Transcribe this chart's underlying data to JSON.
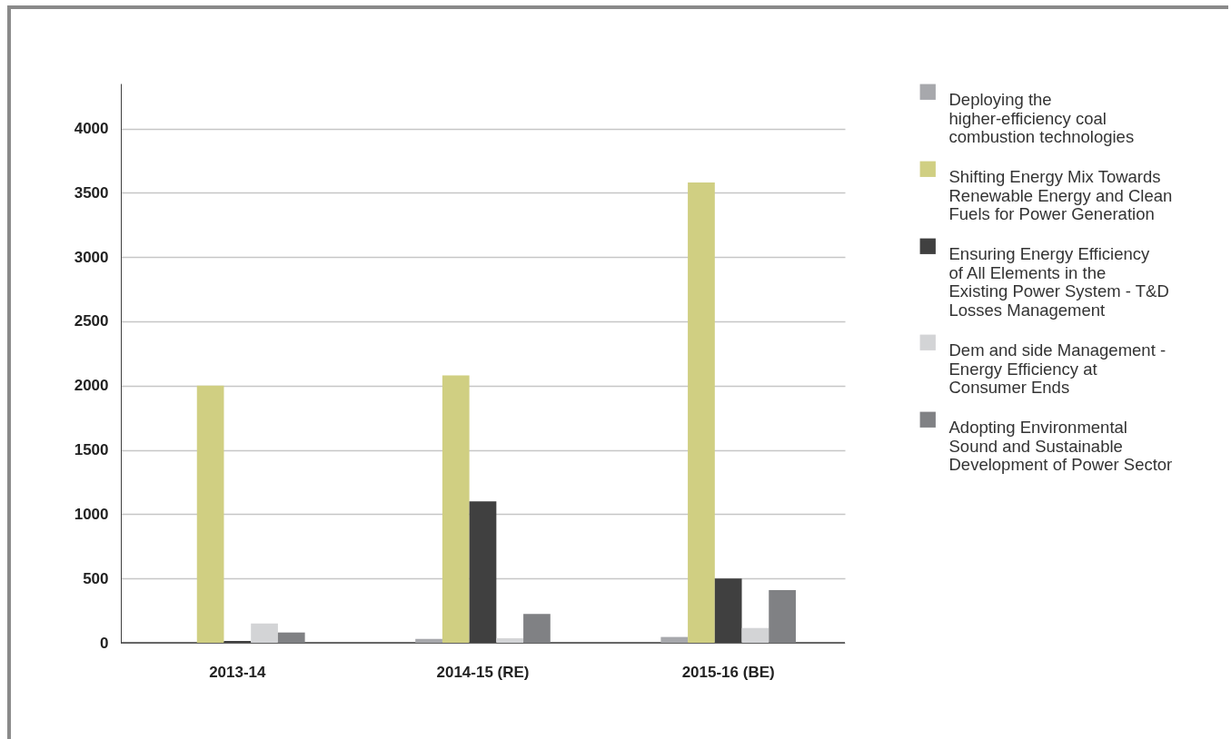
{
  "chart_data": {
    "type": "bar",
    "categories": [
      "2013-14",
      "2014-15 (RE)",
      "2015-16 (BE)"
    ],
    "series": [
      {
        "name": "Deploying the higher-efficiency coal combustion technologies",
        "color": "#a7a8ac",
        "values": [
          0,
          30,
          45
        ]
      },
      {
        "name": "Shifting Energy Mix Towards Renewable Energy and Clean Fuels for Power Generation",
        "color": "#d0cf82",
        "values": [
          2000,
          2080,
          3580
        ]
      },
      {
        "name": "Ensuring Energy Efficiency of All Elements in the Existing Power System - T&D Losses Management",
        "color": "#404040",
        "values": [
          15,
          1100,
          500
        ]
      },
      {
        "name": "Dem and side Management - Energy Efficiency at Consumer Ends",
        "color": "#d3d4d6",
        "values": [
          150,
          35,
          115
        ]
      },
      {
        "name": "Adopting Environmental Sound and Sustainable Development of Power Sector",
        "color": "#808184",
        "values": [
          80,
          225,
          410
        ]
      }
    ],
    "ylim": [
      0,
      4350
    ],
    "yticks": [
      0,
      500,
      1000,
      1500,
      2000,
      2500,
      3000,
      3500,
      4000
    ],
    "grid": "y",
    "legend": "right"
  }
}
